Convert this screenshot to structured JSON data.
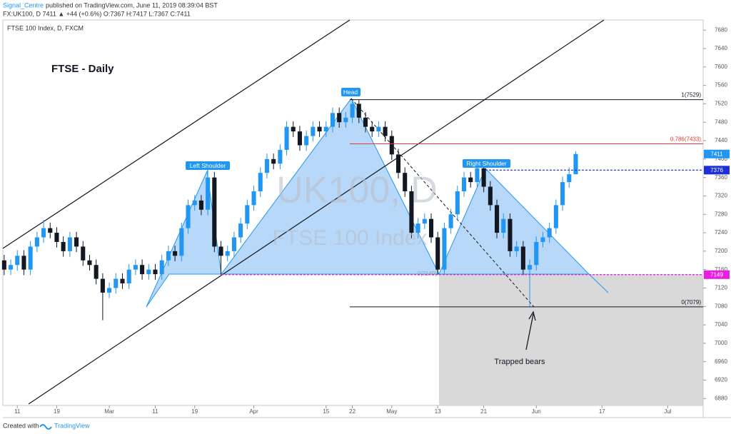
{
  "header": {
    "author": "Signal_Centre",
    "published": "published on TradingView.com, June 11, 2019 08:39:04 BST",
    "symbol_line": "FX:UK100, D  7411 ▲ +44 (+0.6%) O:7367 H:7417 L:7367 C:7411"
  },
  "footer": {
    "created": "Created with",
    "brand": "TradingView"
  },
  "chart_data": {
    "type": "candlestick",
    "title": "FTSE - Daily",
    "legend_label": "FTSE 100 Index, D, FXCM",
    "watermark": "UK100, D",
    "watermark_sub": "FTSE 100 Index",
    "up_color": "#2196f3",
    "down_color": "#131722",
    "x": [
      0,
      1,
      2,
      3,
      4,
      5,
      6,
      7,
      8,
      9,
      10,
      11,
      12,
      13,
      14,
      15,
      16,
      17,
      18,
      19,
      20,
      21,
      22,
      23,
      24,
      25,
      26,
      27,
      28,
      29,
      30,
      31,
      32,
      33,
      34,
      35,
      36,
      37,
      38,
      39,
      40,
      41,
      42,
      43,
      44,
      45,
      46,
      47,
      48,
      49,
      50,
      51,
      52,
      53,
      54,
      55,
      56,
      57,
      58,
      59,
      60,
      61,
      62,
      63,
      64,
      65,
      66,
      67,
      68,
      69,
      70,
      71,
      72,
      73,
      74,
      75,
      76,
      77,
      78,
      79,
      80,
      81,
      82,
      83,
      84,
      85,
      86,
      87
    ],
    "open": [
      7180,
      7160,
      7170,
      7190,
      7160,
      7210,
      7230,
      7250,
      7240,
      7220,
      7200,
      7230,
      7210,
      7180,
      7170,
      7140,
      7110,
      7120,
      7140,
      7130,
      7160,
      7170,
      7150,
      7160,
      7150,
      7180,
      7200,
      7190,
      7250,
      7300,
      7310,
      7290,
      7360,
      7210,
      7190,
      7200,
      7230,
      7260,
      7300,
      7330,
      7370,
      7400,
      7390,
      7420,
      7470,
      7460,
      7430,
      7450,
      7470,
      7460,
      7470,
      7500,
      7480,
      7490,
      7520,
      7490,
      7470,
      7460,
      7470,
      7450,
      7410,
      7370,
      7330,
      7240,
      7260,
      7270,
      7230,
      7160,
      7250,
      7280,
      7330,
      7360,
      7350,
      7380,
      7340,
      7300,
      7240,
      7270,
      7200,
      7210,
      7160,
      7170,
      7220,
      7230,
      7250,
      7300,
      7350,
      7367
    ],
    "high": [
      7192,
      7182,
      7202,
      7202,
      7222,
      7242,
      7268,
      7262,
      7252,
      7232,
      7242,
      7242,
      7222,
      7192,
      7182,
      7152,
      7132,
      7152,
      7152,
      7172,
      7182,
      7182,
      7172,
      7172,
      7192,
      7212,
      7212,
      7262,
      7312,
      7322,
      7322,
      7378,
      7372,
      7222,
      7212,
      7242,
      7272,
      7312,
      7342,
      7382,
      7412,
      7412,
      7432,
      7482,
      7482,
      7472,
      7462,
      7482,
      7482,
      7482,
      7512,
      7512,
      7502,
      7529,
      7528,
      7502,
      7482,
      7482,
      7482,
      7462,
      7422,
      7382,
      7342,
      7272,
      7282,
      7282,
      7242,
      7262,
      7292,
      7342,
      7372,
      7372,
      7392,
      7392,
      7352,
      7312,
      7282,
      7282,
      7222,
      7222,
      7182,
      7232,
      7242,
      7262,
      7312,
      7362,
      7382,
      7417
    ],
    "low": [
      7148,
      7148,
      7158,
      7148,
      7148,
      7198,
      7218,
      7228,
      7208,
      7188,
      7188,
      7198,
      7168,
      7158,
      7128,
      7050,
      7098,
      7108,
      7118,
      7118,
      7148,
      7138,
      7138,
      7138,
      7138,
      7168,
      7178,
      7178,
      7238,
      7288,
      7278,
      7278,
      7198,
      7149,
      7178,
      7188,
      7218,
      7248,
      7288,
      7318,
      7358,
      7378,
      7378,
      7408,
      7448,
      7418,
      7418,
      7438,
      7448,
      7448,
      7458,
      7468,
      7468,
      7478,
      7478,
      7458,
      7448,
      7448,
      7438,
      7398,
      7358,
      7318,
      7228,
      7228,
      7248,
      7218,
      7149,
      7149,
      7238,
      7268,
      7318,
      7338,
      7338,
      7328,
      7288,
      7228,
      7228,
      7188,
      7188,
      7148,
      7079,
      7158,
      7208,
      7218,
      7238,
      7288,
      7338,
      7367
    ],
    "close": [
      7160,
      7170,
      7190,
      7160,
      7210,
      7230,
      7250,
      7240,
      7220,
      7200,
      7230,
      7210,
      7180,
      7170,
      7140,
      7110,
      7120,
      7140,
      7130,
      7160,
      7170,
      7150,
      7160,
      7150,
      7180,
      7200,
      7190,
      7250,
      7300,
      7310,
      7290,
      7360,
      7210,
      7190,
      7200,
      7230,
      7260,
      7300,
      7330,
      7370,
      7400,
      7390,
      7420,
      7470,
      7460,
      7430,
      7450,
      7470,
      7460,
      7470,
      7500,
      7480,
      7490,
      7520,
      7490,
      7470,
      7460,
      7470,
      7450,
      7410,
      7370,
      7330,
      7240,
      7260,
      7270,
      7230,
      7160,
      7250,
      7280,
      7330,
      7360,
      7350,
      7380,
      7340,
      7300,
      7240,
      7270,
      7200,
      7210,
      7160,
      7170,
      7220,
      7230,
      7250,
      7300,
      7350,
      7367,
      7411
    ],
    "xlim": [
      -0.2,
      106.4
    ],
    "xticks": [
      {
        "value": 2,
        "label": "11"
      },
      {
        "value": 8,
        "label": "19"
      },
      {
        "value": 16,
        "label": "Mar"
      },
      {
        "value": 23,
        "label": "11"
      },
      {
        "value": 29,
        "label": "19"
      },
      {
        "value": 38,
        "label": "Apr"
      },
      {
        "value": 49,
        "label": "15"
      },
      {
        "value": 53,
        "label": "22"
      },
      {
        "value": 59,
        "label": "May"
      },
      {
        "value": 66,
        "label": "13"
      },
      {
        "value": 73,
        "label": "21"
      },
      {
        "value": 81,
        "label": "Jun"
      },
      {
        "value": 91,
        "label": "17"
      },
      {
        "value": 101,
        "label": "Jul"
      }
    ],
    "ylim": [
      6865,
      7702
    ],
    "yticks": [
      6880,
      6920,
      6960,
      7000,
      7040,
      7080,
      7120,
      7160,
      7200,
      7240,
      7280,
      7320,
      7360,
      7400,
      7440,
      7480,
      7520,
      7560,
      7600,
      7640,
      7680
    ],
    "levels": [
      {
        "value": 7529,
        "label": "1(7529)",
        "color": "#131722"
      },
      {
        "value": 7433,
        "label": "0.786(7433)",
        "color": "#e53935"
      },
      {
        "value": 7079,
        "label": "0(7079)",
        "color": "#131722"
      }
    ],
    "base_label": {
      "value": 7149,
      "label": "0(7149)"
    },
    "price_tags": [
      {
        "value": 7411,
        "color": "#2196f3"
      },
      {
        "value": 7376,
        "color": "#1e2fd6"
      },
      {
        "value": 7149,
        "color": "#e91ee0"
      }
    ],
    "annotations": {
      "head": "Head",
      "left_shoulder": "Left Shoulder",
      "right_shoulder": "Right Shoulder",
      "trapped": "Trapped bears"
    }
  }
}
